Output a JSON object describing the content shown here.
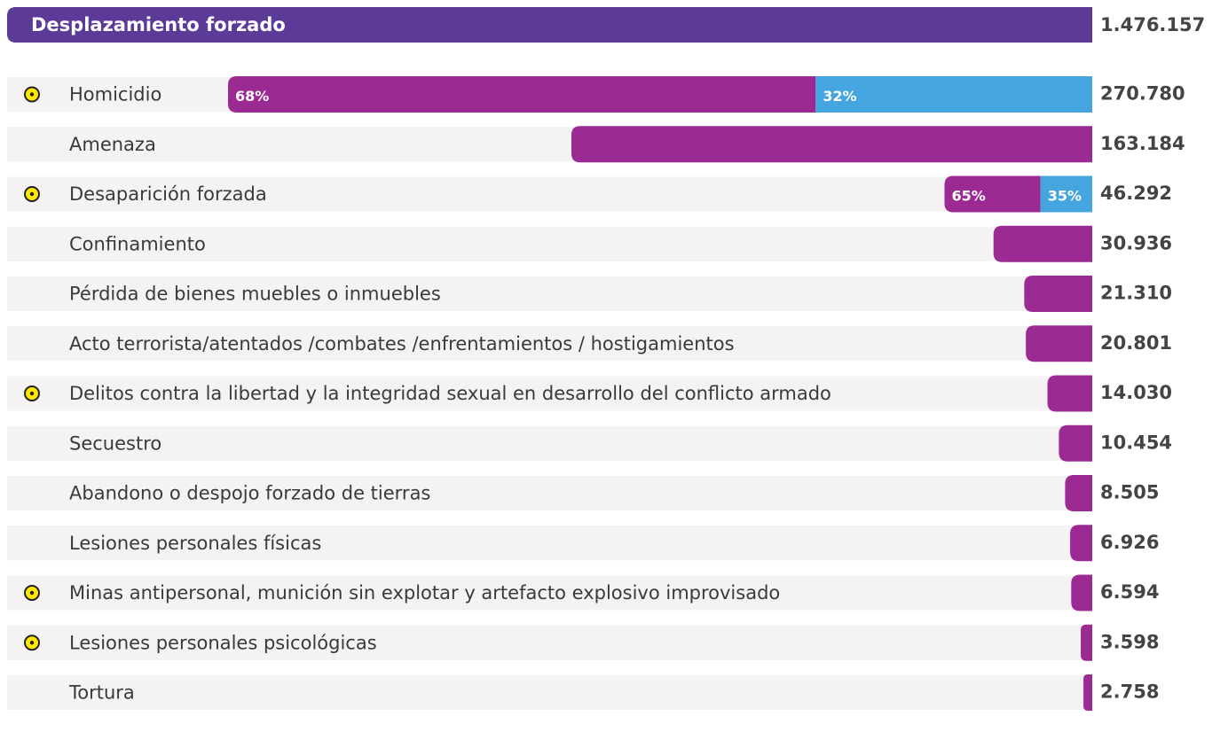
{
  "chart_data": {
    "type": "bar",
    "orientation": "horizontal",
    "header": {
      "label": "Desplazamiento forzado",
      "value": 1476157,
      "value_label": "1.476.157",
      "color": "#5b3a98"
    },
    "categories": [
      "Homicidio",
      "Amenaza",
      "Desaparición forzada",
      "Confinamiento",
      "Pérdida de bienes muebles o inmuebles",
      "Acto terrorista/atentados /combates /enfrentamientos / hostigamientos",
      "Delitos contra la libertad y la integridad sexual en desarrollo del conflicto armado",
      "Secuestro",
      "Abandono o despojo forzado de tierras",
      "Lesiones personales físicas",
      "Minas antipersonal, munición sin explotar y artefacto explosivo improvisado",
      "Lesiones personales psicológicas",
      "Tortura"
    ],
    "values": [
      270780,
      163184,
      46292,
      30936,
      21310,
      20801,
      14030,
      10454,
      8505,
      6926,
      6594,
      3598,
      2758
    ],
    "value_labels": [
      "270.780",
      "163.184",
      "46.292",
      "30.936",
      "21.310",
      "20.801",
      "14.030",
      "10.454",
      "8.505",
      "6.926",
      "6.594",
      "3.598",
      "2.758"
    ],
    "highlighted": [
      true,
      false,
      true,
      false,
      false,
      false,
      true,
      false,
      false,
      false,
      true,
      true,
      false
    ],
    "color": "#9c2a93",
    "shares": [
      [
        68,
        32
      ],
      null,
      [
        65,
        35
      ],
      null,
      null,
      null,
      null,
      null,
      null,
      null,
      null,
      null,
      null
    ],
    "share_labels": [
      [
        "68%",
        "32%"
      ],
      null,
      [
        "65%",
        "35%"
      ],
      null,
      null,
      null,
      null,
      null,
      null,
      null,
      null,
      null,
      null
    ],
    "share_colors": [
      "#9c2a93",
      "#45a5de"
    ],
    "xlim": [
      0,
      340000
    ]
  }
}
